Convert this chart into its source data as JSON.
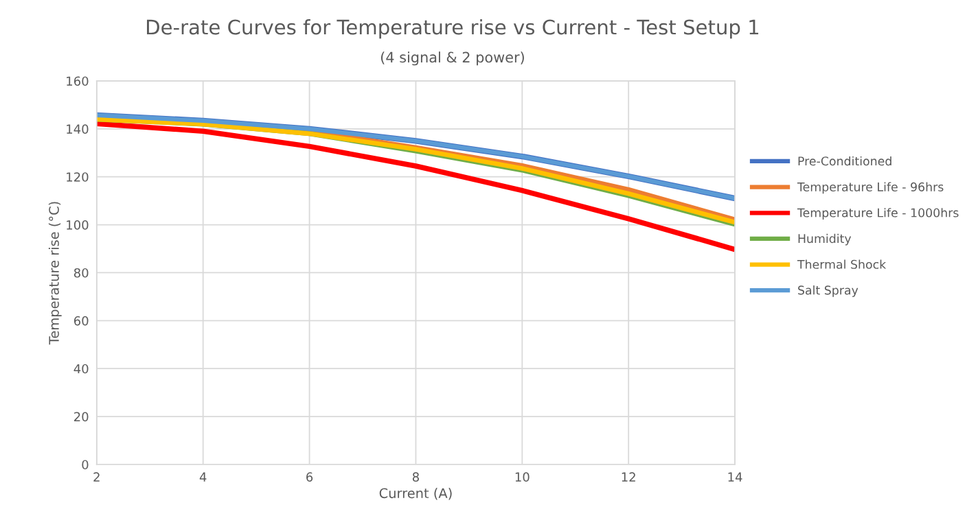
{
  "chart_data": {
    "type": "line",
    "title": "De-rate Curves for Temperature rise vs Current - Test Setup 1",
    "subtitle": "(4 signal & 2 power)",
    "xlabel": "Current (A)",
    "ylabel": "Temperature rise (°C)",
    "x": [
      2,
      4,
      6,
      8,
      10,
      12,
      14
    ],
    "series": [
      {
        "name": "Pre-Conditioned",
        "color": "#4472c4",
        "values": [
          145.7,
          143.4,
          140,
          135,
          128.5,
          120.2,
          111
        ]
      },
      {
        "name": "Temperature Life - 96hrs",
        "color": "#ed7d31",
        "values": [
          144.5,
          142.5,
          139,
          132,
          124.5,
          114.5,
          102
        ]
      },
      {
        "name": "Temperature Life - 1000hrs",
        "color": "#ff0000",
        "values": [
          142.2,
          139,
          132.7,
          124.5,
          114.3,
          102.5,
          89.7
        ]
      },
      {
        "name": "Humidity",
        "color": "#70ad47",
        "values": [
          144,
          142,
          138,
          130.8,
          122.8,
          112.2,
          100.2
        ]
      },
      {
        "name": "Thermal Shock",
        "color": "#ffc000",
        "values": [
          144,
          142,
          138,
          131.5,
          123.5,
          113,
          101
        ]
      },
      {
        "name": "Salt Spray",
        "color": "#5b9bd5",
        "values": [
          145.7,
          143.4,
          140,
          135,
          128.5,
          120.2,
          111
        ]
      }
    ],
    "xlim": [
      2,
      14
    ],
    "xticks": [
      2,
      4,
      6,
      8,
      10,
      12,
      14
    ],
    "ylim": [
      0,
      160
    ],
    "yticks": [
      0,
      20,
      40,
      60,
      80,
      100,
      120,
      140,
      160
    ],
    "grid": true,
    "legend": "right",
    "marker": "none",
    "line_style": "solid"
  }
}
